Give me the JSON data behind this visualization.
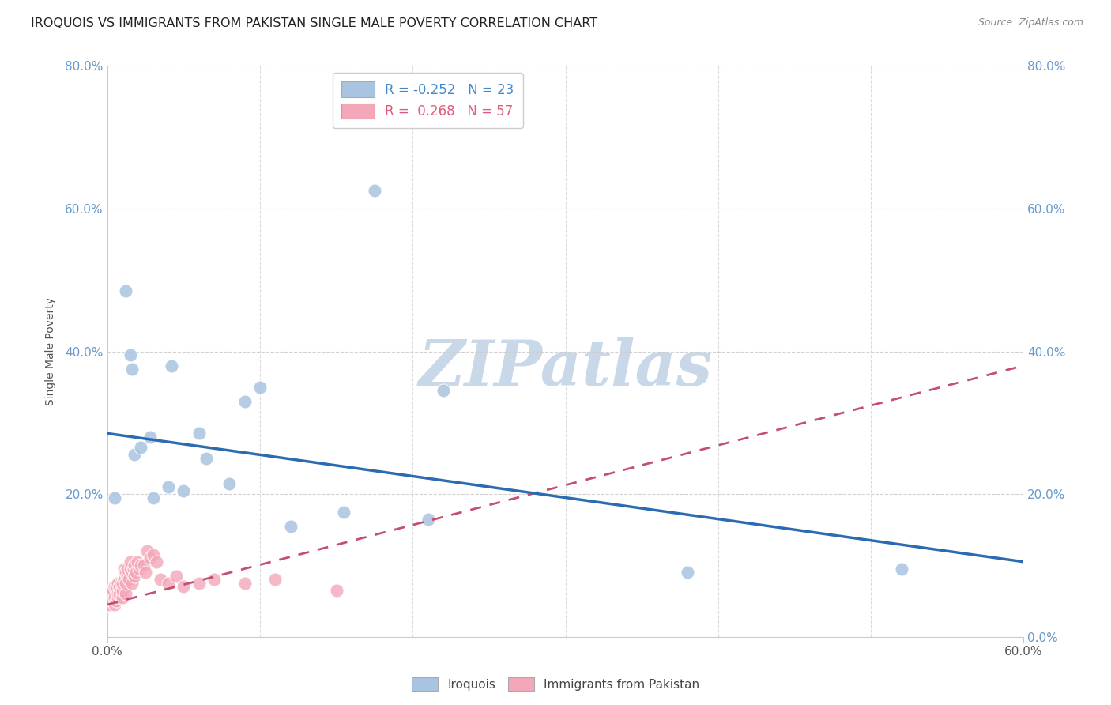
{
  "title": "IROQUOIS VS IMMIGRANTS FROM PAKISTAN SINGLE MALE POVERTY CORRELATION CHART",
  "source": "Source: ZipAtlas.com",
  "ylabel": "Single Male Poverty",
  "xlim": [
    0.0,
    0.6
  ],
  "ylim": [
    0.0,
    0.8
  ],
  "xtick_positions": [
    0.0,
    0.6
  ],
  "xtick_labels": [
    "0.0%",
    "60.0%"
  ],
  "ytick_positions": [
    0.0,
    0.2,
    0.4,
    0.6,
    0.8
  ],
  "ytick_labels": [
    "",
    "20.0%",
    "40.0%",
    "60.0%",
    "80.0%"
  ],
  "ytick_labels_right": [
    "0.0%",
    "20.0%",
    "40.0%",
    "60.0%",
    "80.0%"
  ],
  "legend_labels": [
    "Iroquois",
    "Immigrants from Pakistan"
  ],
  "iroquois_R": -0.252,
  "iroquois_N": 23,
  "pakistan_R": 0.268,
  "pakistan_N": 57,
  "blue_color": "#a8c4e0",
  "blue_line_color": "#2b6cb0",
  "pink_color": "#f4a7b9",
  "pink_line_color": "#c45070",
  "watermark_color": "#c8d8e8",
  "background_color": "#ffffff",
  "grid_color": "#cccccc",
  "iroquois_x": [
    0.005,
    0.012,
    0.015,
    0.016,
    0.018,
    0.022,
    0.028,
    0.03,
    0.04,
    0.042,
    0.05,
    0.06,
    0.065,
    0.08,
    0.09,
    0.1,
    0.12,
    0.155,
    0.175,
    0.22,
    0.38,
    0.52,
    0.21
  ],
  "iroquois_y": [
    0.195,
    0.485,
    0.395,
    0.375,
    0.255,
    0.265,
    0.28,
    0.195,
    0.21,
    0.38,
    0.205,
    0.285,
    0.25,
    0.215,
    0.33,
    0.35,
    0.155,
    0.175,
    0.625,
    0.345,
    0.09,
    0.095,
    0.165
  ],
  "pakistan_x": [
    0.001,
    0.002,
    0.002,
    0.003,
    0.003,
    0.004,
    0.004,
    0.005,
    0.005,
    0.005,
    0.006,
    0.006,
    0.006,
    0.007,
    0.007,
    0.007,
    0.008,
    0.008,
    0.009,
    0.009,
    0.01,
    0.01,
    0.01,
    0.011,
    0.011,
    0.012,
    0.012,
    0.012,
    0.013,
    0.013,
    0.014,
    0.015,
    0.015,
    0.016,
    0.016,
    0.017,
    0.018,
    0.018,
    0.019,
    0.02,
    0.021,
    0.022,
    0.024,
    0.025,
    0.026,
    0.028,
    0.03,
    0.032,
    0.035,
    0.04,
    0.045,
    0.05,
    0.06,
    0.07,
    0.09,
    0.11,
    0.15
  ],
  "pakistan_y": [
    0.045,
    0.055,
    0.065,
    0.05,
    0.06,
    0.05,
    0.065,
    0.045,
    0.055,
    0.07,
    0.05,
    0.065,
    0.07,
    0.055,
    0.06,
    0.075,
    0.06,
    0.07,
    0.065,
    0.075,
    0.055,
    0.065,
    0.075,
    0.08,
    0.095,
    0.06,
    0.075,
    0.09,
    0.085,
    0.095,
    0.08,
    0.095,
    0.105,
    0.075,
    0.09,
    0.095,
    0.085,
    0.1,
    0.09,
    0.105,
    0.095,
    0.1,
    0.1,
    0.09,
    0.12,
    0.11,
    0.115,
    0.105,
    0.08,
    0.075,
    0.085,
    0.07,
    0.075,
    0.08,
    0.075,
    0.08,
    0.065
  ],
  "irq_line_x0": 0.0,
  "irq_line_y0": 0.285,
  "irq_line_x1": 0.6,
  "irq_line_y1": 0.105,
  "pak_line_x0": 0.0,
  "pak_line_y0": 0.045,
  "pak_line_x1": 0.6,
  "pak_line_y1": 0.38
}
